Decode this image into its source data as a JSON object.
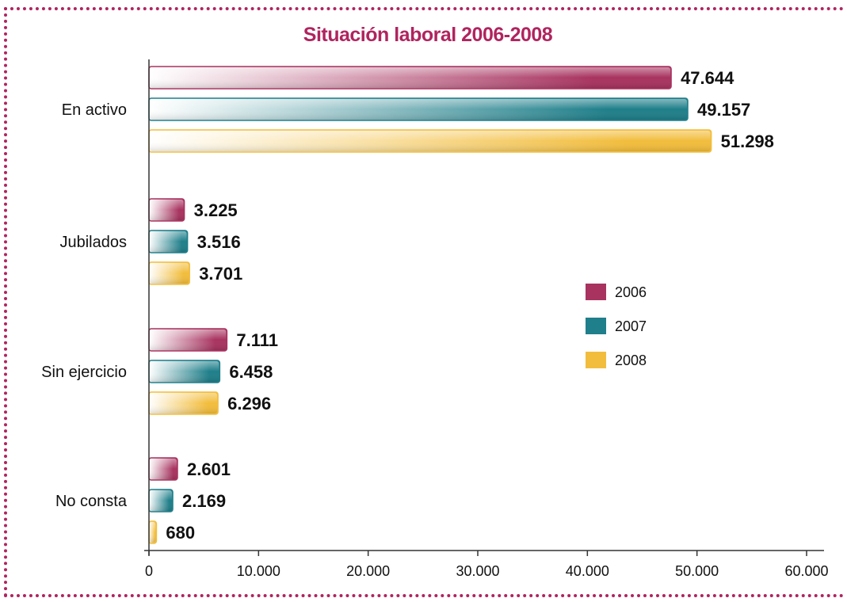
{
  "chart_data": {
    "type": "bar",
    "orientation": "horizontal",
    "title": "Situación laboral 2006-2008",
    "categories": [
      "En activo",
      "Jubilados",
      "Sin ejercicio",
      "No consta"
    ],
    "series": [
      {
        "name": "2006",
        "color": "#a8335f",
        "values": [
          47644,
          3225,
          7111,
          2601
        ],
        "labels": [
          "47.644",
          "3.225",
          "7.111",
          "2.601"
        ]
      },
      {
        "name": "2007",
        "color": "#1f7f8a",
        "values": [
          49157,
          3516,
          6458,
          2169
        ],
        "labels": [
          "49.157",
          "3.516",
          "6.458",
          "2.169"
        ]
      },
      {
        "name": "2008",
        "color": "#f2bd3c",
        "values": [
          51298,
          3701,
          6296,
          680
        ],
        "labels": [
          "51.298",
          "3.701",
          "6.296",
          "680"
        ]
      }
    ],
    "xlim": [
      0,
      60000
    ],
    "xticks": [
      0,
      10000,
      20000,
      30000,
      40000,
      50000,
      60000
    ],
    "xtick_labels": [
      "0",
      "10.000",
      "20.000",
      "30.000",
      "40.000",
      "50.000",
      "60.000"
    ],
    "grid": false,
    "legend": "right"
  }
}
